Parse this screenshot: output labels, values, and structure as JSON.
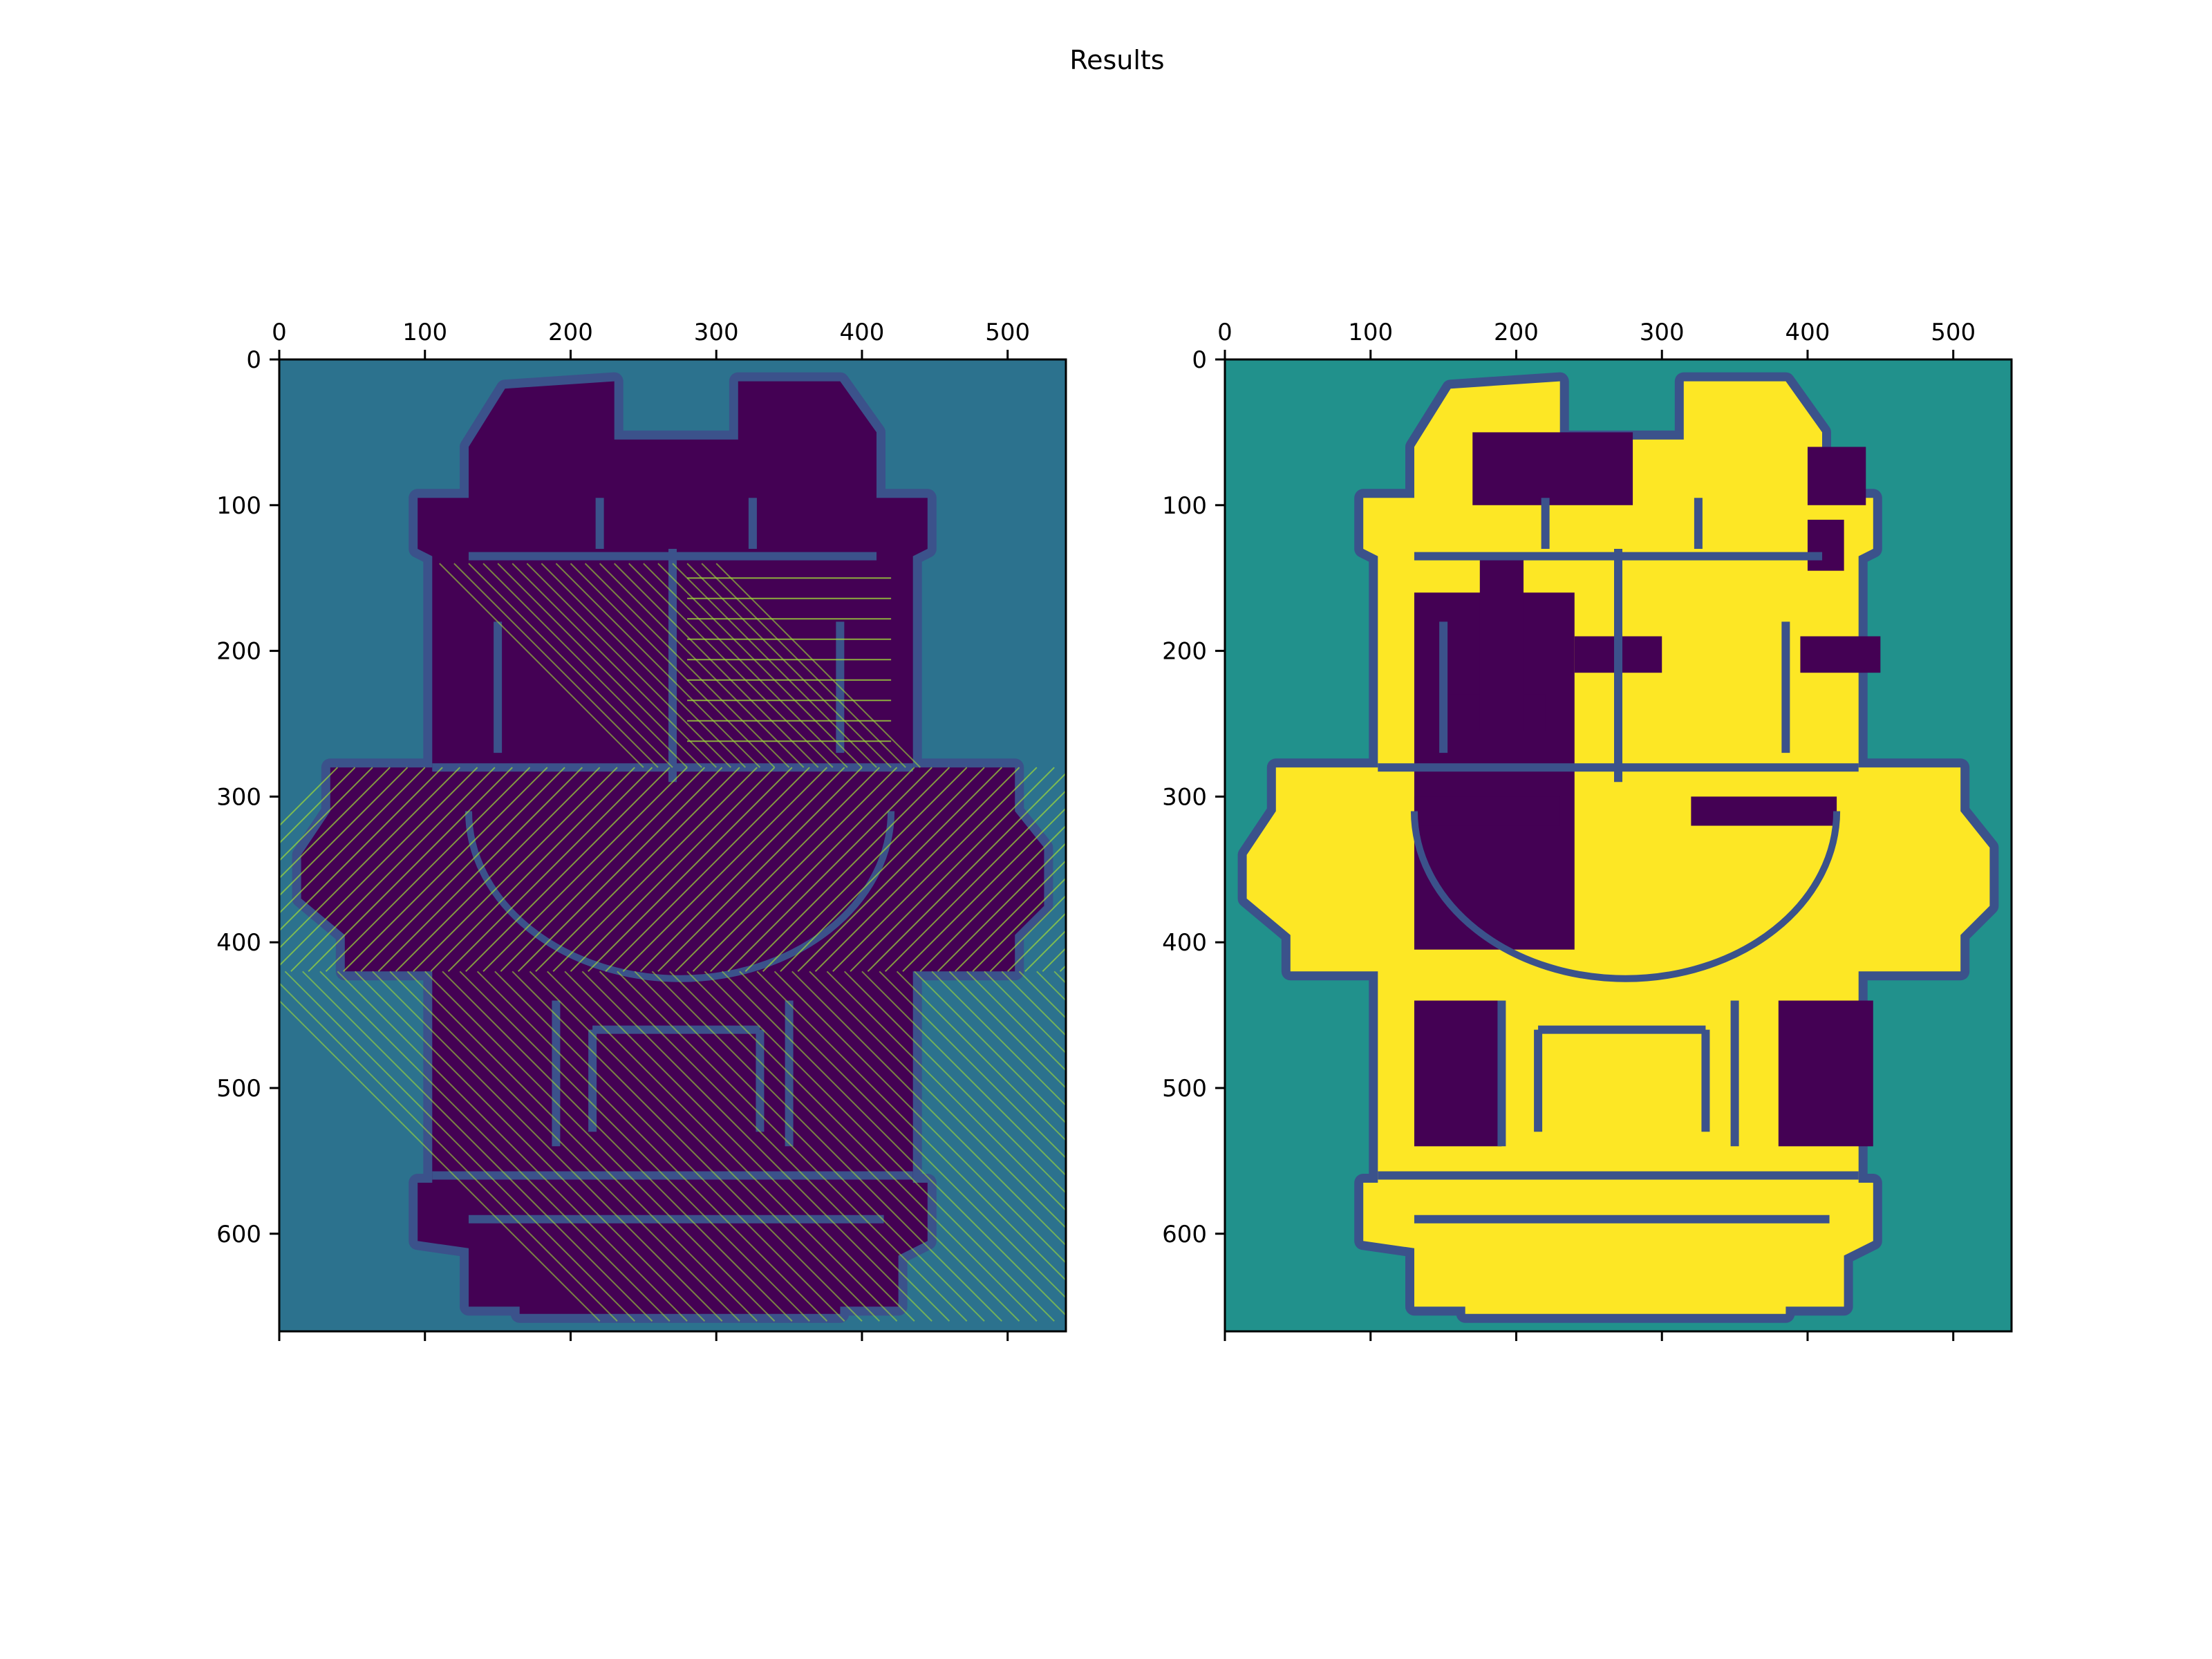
{
  "figure": {
    "title": "Results"
  },
  "chart_data": [
    {
      "type": "heatmap",
      "title": "",
      "xlabel": "",
      "ylabel": "",
      "xlim": [
        0,
        540
      ],
      "ylim": [
        667,
        0
      ],
      "x_ticks": [
        0,
        100,
        200,
        300,
        400,
        500
      ],
      "y_ticks": [
        0,
        100,
        200,
        300,
        400,
        500,
        600
      ],
      "x_tick_labels": [
        "0",
        "100",
        "200",
        "300",
        "400",
        "500"
      ],
      "y_tick_labels": [
        "0",
        "100",
        "200",
        "300",
        "400",
        "500",
        "600"
      ],
      "x_axis_position": "top",
      "grid": false,
      "colormap": "viridis",
      "colors": {
        "background": "#2c728e",
        "free": "#440154",
        "wall": "#3b528b",
        "path": "#a0da39"
      }
    },
    {
      "type": "heatmap",
      "title": "",
      "xlabel": "",
      "ylabel": "",
      "xlim": [
        0,
        540
      ],
      "ylim": [
        667,
        0
      ],
      "x_ticks": [
        0,
        100,
        200,
        300,
        400,
        500
      ],
      "y_ticks": [
        0,
        100,
        200,
        300,
        400,
        500,
        600
      ],
      "x_tick_labels": [
        "0",
        "100",
        "200",
        "300",
        "400",
        "500"
      ],
      "y_tick_labels": [
        "0",
        "100",
        "200",
        "300",
        "400",
        "500",
        "600"
      ],
      "x_axis_position": "top",
      "grid": false,
      "colormap": "viridis",
      "colors": {
        "background": "#21918c",
        "free": "#440154",
        "wall": "#3b528b",
        "covered": "#fde725"
      }
    }
  ]
}
